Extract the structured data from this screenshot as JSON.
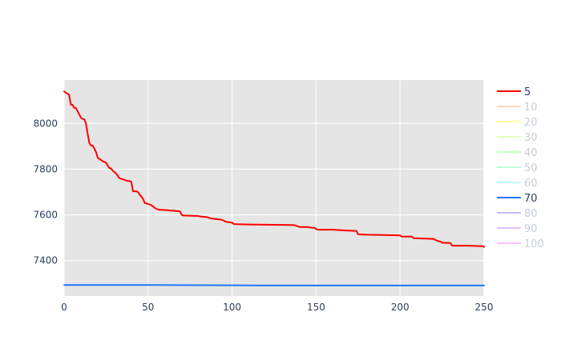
{
  "chart_data": {
    "type": "line",
    "title": "",
    "xlabel": "",
    "ylabel": "",
    "xlim": [
      0,
      250
    ],
    "ylim": [
      7245,
      8190
    ],
    "xticks": [
      0,
      50,
      100,
      150,
      200,
      250
    ],
    "yticks": [
      7400,
      7600,
      7800,
      8000
    ],
    "grid": true,
    "plot_background": "#e5e5e5",
    "legend_position": "right",
    "series": [
      {
        "name": "5",
        "color": "#ff0000",
        "visible": true,
        "x": [
          0,
          2,
          3,
          4,
          5,
          6,
          7,
          8,
          9,
          10,
          11,
          12,
          13,
          14,
          15,
          16,
          17,
          18,
          19,
          20,
          22,
          23,
          25,
          26,
          27,
          28,
          29,
          30,
          31,
          32,
          33,
          38,
          39,
          40,
          41,
          42,
          43,
          44,
          45,
          46,
          47,
          48,
          49,
          51,
          52,
          54,
          56,
          57,
          58,
          62,
          64,
          65,
          69,
          70,
          71,
          80,
          81,
          85,
          87,
          92,
          93,
          95,
          96,
          100,
          101,
          102,
          103,
          110,
          120,
          130,
          137,
          138,
          140,
          145,
          146,
          149,
          150,
          151,
          160,
          165,
          166,
          174,
          175,
          180,
          190,
          200,
          201,
          207,
          208,
          220,
          221,
          223,
          224,
          225,
          230,
          231,
          240,
          249,
          250
        ],
        "y": [
          8140,
          8130,
          8125,
          8082,
          8082,
          8068,
          8068,
          8053,
          8040,
          8025,
          8020,
          8018,
          8000,
          7955,
          7915,
          7903,
          7903,
          7890,
          7875,
          7850,
          7840,
          7835,
          7828,
          7815,
          7805,
          7803,
          7793,
          7787,
          7780,
          7770,
          7760,
          7748,
          7748,
          7745,
          7703,
          7703,
          7703,
          7700,
          7688,
          7680,
          7670,
          7652,
          7650,
          7645,
          7642,
          7630,
          7623,
          7622,
          7622,
          7620,
          7618,
          7618,
          7615,
          7600,
          7597,
          7595,
          7593,
          7590,
          7585,
          7580,
          7580,
          7575,
          7570,
          7566,
          7560,
          7559,
          7559,
          7558,
          7557,
          7556,
          7555,
          7553,
          7547,
          7547,
          7545,
          7543,
          7538,
          7535,
          7535,
          7533,
          7532,
          7530,
          7515,
          7513,
          7512,
          7510,
          7505,
          7505,
          7498,
          7495,
          7490,
          7485,
          7483,
          7478,
          7477,
          7465,
          7465,
          7463,
          7460
        ]
      },
      {
        "name": "10",
        "color": "#ffb380",
        "visible": false
      },
      {
        "name": "20",
        "color": "#ffff4d",
        "visible": false
      },
      {
        "name": "30",
        "color": "#ccff80",
        "visible": false
      },
      {
        "name": "40",
        "color": "#80ff80",
        "visible": false
      },
      {
        "name": "50",
        "color": "#80ffbb",
        "visible": false
      },
      {
        "name": "60",
        "color": "#80ffff",
        "visible": false
      },
      {
        "name": "70",
        "color": "#1f77ff",
        "visible": true,
        "x": [
          0,
          50,
          100,
          125,
          150,
          200,
          250
        ],
        "y": [
          7293,
          7293,
          7292,
          7291,
          7291,
          7291,
          7291
        ]
      },
      {
        "name": "80",
        "color": "#8080ff",
        "visible": false
      },
      {
        "name": "90",
        "color": "#bb80ff",
        "visible": false
      },
      {
        "name": "100",
        "color": "#ff80ff",
        "visible": false
      }
    ]
  },
  "colors": {
    "legend_active_text": "#2a3f5f",
    "legend_inactive_text": "#8d9aab",
    "grid": "#ffffff"
  }
}
